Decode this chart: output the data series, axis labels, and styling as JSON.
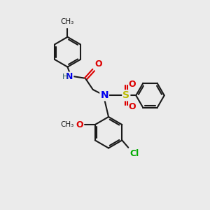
{
  "bg_color": "#ebebeb",
  "bond_color": "#1a1a1a",
  "N_color": "#0000ee",
  "O_color": "#dd0000",
  "Cl_color": "#00aa00",
  "S_color": "#bbbb00",
  "H_color": "#336666",
  "line_width": 1.5,
  "ring_r": 0.72,
  "xlim": [
    0,
    10
  ],
  "ylim": [
    0,
    10
  ]
}
